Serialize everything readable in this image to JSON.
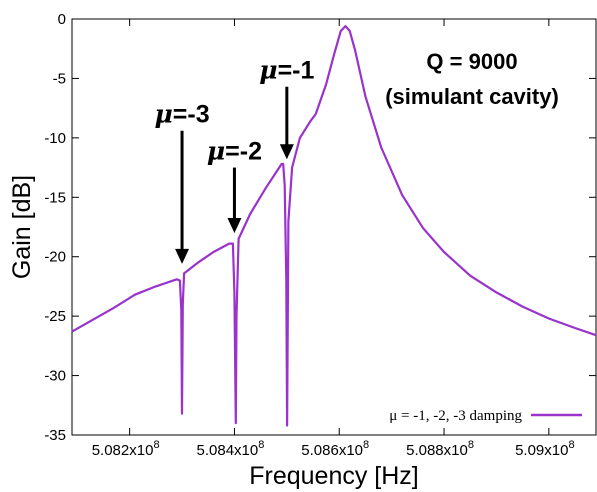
{
  "chart_data": {
    "type": "line",
    "title": "",
    "xlabel": "Frequency [Hz]",
    "ylabel": "Gain [dB]",
    "xlim": [
      508090000,
      509090000
    ],
    "ylim": [
      -35,
      0
    ],
    "grid": false,
    "legend_position": "bottom-right",
    "x_ticks": [
      508200000,
      508400000,
      508600000,
      508800000,
      509000000
    ],
    "x_tick_labels": [
      {
        "mantissa": "5.082x10",
        "exp": "8"
      },
      {
        "mantissa": "5.084x10",
        "exp": "8"
      },
      {
        "mantissa": "5.086x10",
        "exp": "8"
      },
      {
        "mantissa": "5.088x10",
        "exp": "8"
      },
      {
        "mantissa": "5.09x10",
        "exp": "8"
      }
    ],
    "y_ticks": [
      0,
      -5,
      -10,
      -15,
      -20,
      -25,
      -30,
      -35
    ],
    "y_tick_labels": [
      "0",
      "-5",
      "-10",
      "-15",
      "-20",
      "-25",
      "-30",
      "-35"
    ],
    "series": [
      {
        "name": "μ = -1, -2, -3 damping",
        "color": "#9933cc",
        "x": [
          508090000,
          508130000,
          508170000,
          508210000,
          508250000,
          508290000,
          508296000,
          508298500,
          508300000,
          508301500,
          508304000,
          508330000,
          508360000,
          508390000,
          508397000,
          508400000,
          508402500,
          508404000,
          508408000,
          508430000,
          508460000,
          508490000,
          508493000,
          508496000,
          508499000,
          508500500,
          508503000,
          508510000,
          508525000,
          508545000,
          508555000,
          508575000,
          508590000,
          508603000,
          508612000,
          508620000,
          508630000,
          508650000,
          508680000,
          508720000,
          508760000,
          508800000,
          508850000,
          508900000,
          508950000,
          509000000,
          509050000,
          509090000
        ],
        "y": [
          -26.3,
          -25.3,
          -24.3,
          -23.2,
          -22.5,
          -21.9,
          -22.0,
          -24.5,
          -33.2,
          -24.0,
          -21.4,
          -20.5,
          -19.6,
          -18.9,
          -18.9,
          -23.0,
          -34.0,
          -25.0,
          -18.5,
          -16.4,
          -14.2,
          -12.2,
          -12.2,
          -14.0,
          -22.0,
          -34.2,
          -17.0,
          -12.5,
          -10.0,
          -8.6,
          -8.0,
          -5.5,
          -3.0,
          -1.0,
          -0.6,
          -1.0,
          -2.6,
          -6.5,
          -10.8,
          -14.8,
          -17.6,
          -19.6,
          -21.6,
          -23.0,
          -24.2,
          -25.2,
          -26.0,
          -26.6
        ]
      }
    ],
    "annotations": [
      {
        "prefix": "μ",
        "text": "=-3",
        "x": 508300000,
        "y_from": -9.4,
        "y_to": -20.6
      },
      {
        "prefix": "μ",
        "text": "=-2",
        "x": 508400000,
        "y_from": -12.5,
        "y_to": -18.0
      },
      {
        "prefix": "μ",
        "text": "=-1",
        "x": 508500000,
        "y_from": -5.7,
        "y_to": -11.8
      }
    ],
    "text_box": {
      "line1": "Q = 9000",
      "line2": "(simulant cavity)"
    }
  }
}
